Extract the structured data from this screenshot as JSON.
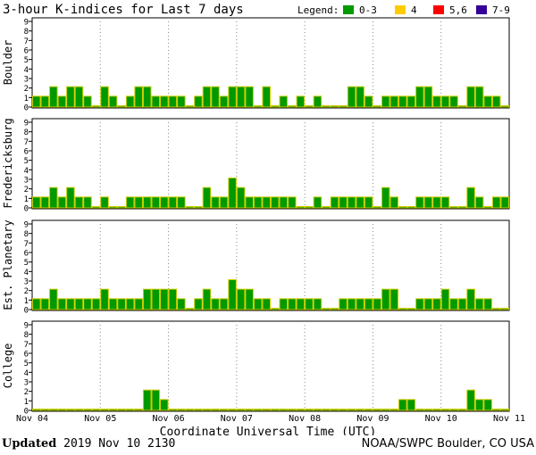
{
  "chart_data": {
    "type": "bar",
    "title": "3-hour K-indices for Last 7 days",
    "xlabel": "Coordinate Universal Time (UTC)",
    "ylim": [
      0,
      9
    ],
    "y_ticks": [
      "0",
      "1",
      "2",
      "3",
      "4",
      "5",
      "6",
      "7",
      "8",
      "9"
    ],
    "x_tick_labels": [
      "Nov 04",
      "Nov 05",
      "Nov 06",
      "Nov 07",
      "Nov 08",
      "Nov 09",
      "Nov 10",
      "Nov 11"
    ],
    "legend": {
      "label": "Legend:",
      "placement": "top-right",
      "entries": [
        {
          "label": "0-3",
          "color": "#009900"
        },
        {
          "label": "4",
          "color": "#ffcc00"
        },
        {
          "label": "5,6",
          "color": "#ff0000"
        },
        {
          "label": "7-9",
          "color": "#330099"
        }
      ]
    },
    "bar_outline_color": "#cccc00",
    "panels": [
      {
        "name": "Boulder",
        "values": [
          1,
          1,
          2,
          1,
          2,
          2,
          1,
          0,
          2,
          1,
          0,
          1,
          2,
          2,
          1,
          1,
          1,
          1,
          0,
          1,
          2,
          2,
          1,
          2,
          2,
          2,
          0,
          2,
          0,
          1,
          0,
          1,
          0,
          1,
          0,
          0,
          0,
          2,
          2,
          1,
          0,
          1,
          1,
          1,
          1,
          2,
          2,
          1,
          1,
          1,
          0,
          2,
          2,
          1,
          1,
          0,
          0
        ]
      },
      {
        "name": "Fredericksburg",
        "values": [
          1,
          1,
          2,
          1,
          2,
          1,
          1,
          0,
          1,
          0,
          0,
          1,
          1,
          1,
          1,
          1,
          1,
          1,
          0,
          0,
          2,
          1,
          1,
          3,
          2,
          1,
          1,
          1,
          1,
          1,
          1,
          0,
          0,
          1,
          0,
          1,
          1,
          1,
          1,
          1,
          0,
          2,
          1,
          0,
          0,
          1,
          1,
          1,
          1,
          0,
          0,
          2,
          1,
          0,
          1,
          1,
          0
        ]
      },
      {
        "name": "Est. Planetary",
        "values": [
          1,
          1,
          2,
          1,
          1,
          1,
          1,
          1,
          2,
          1,
          1,
          1,
          1,
          2,
          2,
          2,
          2,
          1,
          0,
          1,
          2,
          1,
          1,
          3,
          2,
          2,
          1,
          1,
          0,
          1,
          1,
          1,
          1,
          1,
          0,
          0,
          1,
          1,
          1,
          1,
          1,
          2,
          2,
          0,
          0,
          1,
          1,
          1,
          2,
          1,
          1,
          2,
          1,
          1,
          0,
          0,
          0
        ]
      },
      {
        "name": "College",
        "values": [
          0,
          0,
          0,
          0,
          0,
          0,
          0,
          0,
          0,
          0,
          0,
          0,
          0,
          2,
          2,
          1,
          0,
          0,
          0,
          0,
          0,
          0,
          0,
          0,
          0,
          0,
          0,
          0,
          0,
          0,
          0,
          0,
          0,
          0,
          0,
          0,
          0,
          0,
          0,
          0,
          0,
          0,
          0,
          1,
          1,
          0,
          0,
          0,
          0,
          0,
          0,
          2,
          1,
          1,
          0,
          0,
          0
        ]
      }
    ]
  },
  "footer": {
    "updated_label": "Updated",
    "updated_time": "2019 Nov 10 2130",
    "source": "NOAA/SWPC Boulder, CO USA"
  }
}
